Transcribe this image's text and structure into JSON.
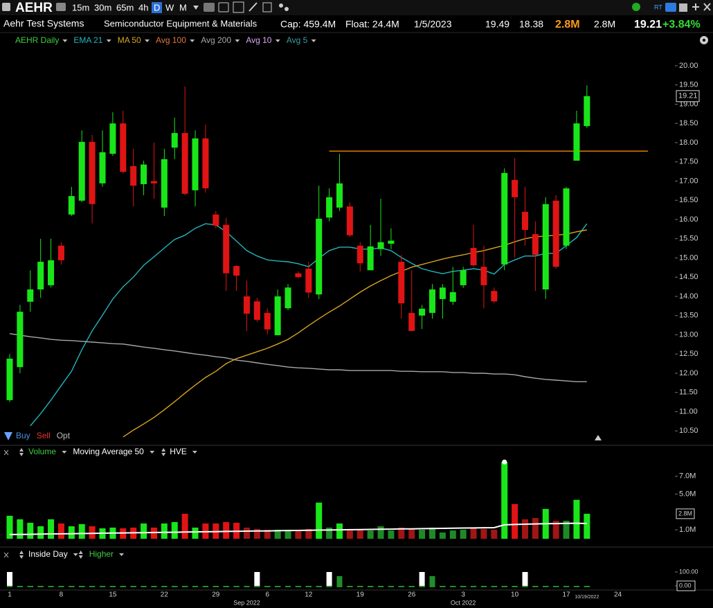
{
  "toolbar": {
    "symbol": "AEHR",
    "timeframes": [
      "15m",
      "30m",
      "65m",
      "4h",
      "D",
      "W",
      "M"
    ],
    "active_timeframe": 4,
    "rt": "RT"
  },
  "header": {
    "name": "Aehr Test Systems",
    "industry": "Semiconductor Equipment & Materials",
    "cap": "Cap: 459.4M",
    "float": "Float: 24.4M",
    "date": "1/5/2023",
    "high": "19.49",
    "low": "18.38",
    "volume": "2.8M",
    "avg_volume": "2.8M",
    "last": "19.21",
    "change": "+3.84%"
  },
  "trade_buttons": [
    "Buy",
    "Sell",
    "Opt"
  ],
  "chart_data": [
    {
      "type": "candlestick",
      "title": "AEHR Daily",
      "title_color": "#3fcf3f",
      "up_color": "#19e619",
      "down_color": "#e01414",
      "categories": [
        "1",
        null,
        null,
        null,
        null,
        "8",
        null,
        null,
        null,
        null,
        "15",
        null,
        null,
        null,
        null,
        "22",
        null,
        null,
        null,
        null,
        "29",
        null,
        null,
        null,
        null,
        "6",
        null,
        null,
        null,
        "12",
        null,
        null,
        null,
        null,
        "19",
        null,
        null,
        null,
        null,
        "26",
        null,
        null,
        null,
        null,
        "3",
        null,
        null,
        null,
        null,
        "10",
        null,
        null,
        null,
        null,
        "17",
        null,
        null,
        null,
        null,
        "24"
      ],
      "month_labels": [
        {
          "index": 23,
          "label": "Sep 2022"
        },
        {
          "index": 44,
          "label": "Oct 2022"
        }
      ],
      "current_date": {
        "index": 56,
        "label": "10/19/2022"
      },
      "open": [
        11.3,
        12.16,
        13.86,
        14.18,
        14.29,
        15.32,
        16.13,
        16.49,
        18.02,
        16.94,
        17.71,
        18.5,
        17.39,
        16.92,
        17.0,
        16.31,
        17.87,
        18.25,
        16.76,
        18.11,
        16.13,
        15.86,
        14.79,
        14.0,
        13.87,
        13.57,
        12.99,
        13.69,
        14.6,
        14.72,
        14.05,
        16.05,
        16.31,
        16.34,
        15.32,
        14.68,
        15.23,
        15.37,
        14.9,
        13.57,
        13.5,
        13.57,
        13.93,
        13.86,
        14.29,
        15.26,
        14.77,
        14.14,
        14.83,
        17.03,
        16.2,
        15.62,
        14.18,
        16.49,
        15.32,
        17.53,
        18.43,
        null,
        null,
        null
      ],
      "high": [
        12.5,
        13.78,
        14.68,
        15.5,
        15.5,
        15.41,
        16.85,
        18.32,
        18.2,
        18.32,
        18.79,
        18.83,
        17.84,
        17.53,
        18.0,
        17.84,
        18.65,
        19.46,
        18.32,
        18.47,
        16.22,
        16.04,
        14.81,
        14.41,
        13.96,
        13.69,
        14.18,
        14.32,
        14.65,
        14.9,
        16.88,
        16.81,
        17.71,
        16.45,
        15.41,
        15.86,
        16.54,
        15.77,
        15.08,
        14.68,
        13.78,
        14.32,
        14.32,
        14.77,
        14.77,
        15.86,
        15.32,
        14.23,
        17.33,
        17.6,
        16.85,
        15.95,
        16.58,
        16.63,
        16.85,
        18.83,
        19.49,
        null,
        null,
        null
      ],
      "low": [
        11.25,
        12.0,
        13.6,
        13.96,
        14.23,
        14.83,
        16.09,
        16.45,
        15.9,
        16.85,
        17.66,
        17.2,
        16.34,
        16.63,
        16.54,
        16.09,
        17.57,
        16.63,
        16.34,
        16.7,
        15.77,
        14.14,
        14.14,
        13.1,
        13.33,
        13.01,
        12.99,
        13.64,
        14.47,
        13.96,
        13.93,
        15.95,
        16.22,
        15.55,
        14.65,
        14.68,
        15.05,
        15.23,
        13.42,
        13.1,
        13.15,
        13.42,
        13.42,
        13.78,
        14.22,
        14.77,
        13.69,
        13.82,
        14.68,
        15.01,
        15.32,
        14.14,
        13.93,
        14.72,
        15.23,
        17.53,
        18.38,
        null,
        null,
        null
      ],
      "close": [
        12.38,
        13.6,
        14.18,
        14.9,
        14.94,
        14.94,
        16.61,
        18.02,
        16.4,
        17.75,
        18.5,
        17.24,
        16.88,
        17.43,
        16.94,
        17.57,
        18.25,
        16.67,
        18.11,
        16.81,
        15.84,
        14.6,
        14.54,
        13.55,
        13.39,
        13.14,
        14.0,
        14.23,
        14.5,
        14.1,
        16.02,
        16.58,
        16.94,
        15.59,
        14.86,
        15.3,
        15.41,
        15.45,
        13.82,
        13.1,
        13.68,
        14.18,
        14.23,
        14.11,
        14.68,
        14.81,
        14.29,
        13.87,
        17.21,
        16.58,
        15.73,
        15.08,
        16.4,
        14.77,
        16.81,
        18.5,
        19.21,
        null,
        null,
        null
      ],
      "studies": [
        {
          "name": "EMA 21",
          "color": "#22b5bd",
          "values": [
            null,
            null,
            10.63,
            10.95,
            11.3,
            11.68,
            12.05,
            12.61,
            13.1,
            13.51,
            13.93,
            14.25,
            14.5,
            14.81,
            15.03,
            15.26,
            15.48,
            15.59,
            15.77,
            15.89,
            15.86,
            15.68,
            15.44,
            15.19,
            15.05,
            14.95,
            14.92,
            14.9,
            14.85,
            14.77,
            14.99,
            15.19,
            15.28,
            15.28,
            15.23,
            15.23,
            15.26,
            15.19,
            15.01,
            14.86,
            14.72,
            14.65,
            14.59,
            14.65,
            14.68,
            14.72,
            14.68,
            14.58,
            14.83,
            14.95,
            15.05,
            15.05,
            15.12,
            15.12,
            15.32,
            15.53,
            15.89,
            null,
            null,
            null
          ]
        },
        {
          "name": "MA 50",
          "color": "#d9a521",
          "values": [
            null,
            null,
            null,
            null,
            null,
            null,
            null,
            null,
            null,
            null,
            null,
            10.34,
            10.52,
            10.68,
            10.85,
            11.05,
            11.26,
            11.48,
            11.69,
            11.89,
            12.05,
            12.25,
            12.38,
            12.47,
            12.56,
            12.65,
            12.76,
            12.88,
            13.05,
            13.24,
            13.42,
            13.59,
            13.75,
            13.93,
            14.11,
            14.27,
            14.41,
            14.54,
            14.65,
            14.76,
            14.83,
            14.9,
            14.97,
            15.03,
            15.08,
            15.14,
            15.19,
            15.26,
            15.33,
            15.42,
            15.5,
            15.55,
            15.57,
            15.59,
            15.62,
            15.68,
            15.73,
            null,
            null,
            null
          ]
        },
        {
          "name": "Avg 100",
          "color": "#e0783a"
        },
        {
          "name": "Avg 200",
          "color": "#a8a8a8",
          "values": [
            13.03,
            12.99,
            12.95,
            12.92,
            12.88,
            12.86,
            12.85,
            12.83,
            12.81,
            12.79,
            12.77,
            12.76,
            12.72,
            12.68,
            12.65,
            12.61,
            12.58,
            12.54,
            12.5,
            12.47,
            12.43,
            12.4,
            12.34,
            12.31,
            12.27,
            12.23,
            12.2,
            12.16,
            12.14,
            12.13,
            12.11,
            12.09,
            12.09,
            12.07,
            12.07,
            12.07,
            12.07,
            12.07,
            12.05,
            12.05,
            12.04,
            12.04,
            12.04,
            12.02,
            12.02,
            12.0,
            12.0,
            11.98,
            11.98,
            11.96,
            11.91,
            11.87,
            11.84,
            11.82,
            11.8,
            11.78,
            11.78,
            null,
            null,
            null
          ]
        },
        {
          "name": "Avg 10",
          "color": "#d8a8f0"
        },
        {
          "name": "Avg 5",
          "color": "#3a9ea0"
        }
      ],
      "level_line": {
        "value": 17.78,
        "start_index": 31,
        "color": "#e07b00"
      },
      "ylim": [
        10.18,
        20.45
      ],
      "yticks": [
        {
          "value": 10.5,
          "label": "10.50"
        },
        {
          "value": 11,
          "label": "11.00"
        },
        {
          "value": 11.5,
          "label": "11.50"
        },
        {
          "value": 12,
          "label": "12.00"
        },
        {
          "value": 12.5,
          "label": "12.50"
        },
        {
          "value": 13,
          "label": "13.00"
        },
        {
          "value": 13.5,
          "label": "13.50"
        },
        {
          "value": 14,
          "label": "14.00"
        },
        {
          "value": 14.5,
          "label": "14.50"
        },
        {
          "value": 15,
          "label": "15.00"
        },
        {
          "value": 15.5,
          "label": "15.50"
        },
        {
          "value": 16,
          "label": "16.00"
        },
        {
          "value": 16.5,
          "label": "16.50"
        },
        {
          "value": 17,
          "label": "17.00"
        },
        {
          "value": 17.5,
          "label": "17.50"
        },
        {
          "value": 18,
          "label": "18.00"
        },
        {
          "value": 18.5,
          "label": "18.50"
        },
        {
          "value": 19,
          "label": "19.00"
        },
        {
          "value": 19.5,
          "label": "19.50"
        },
        {
          "value": 20,
          "label": "20.00"
        }
      ]
    },
    {
      "type": "bar",
      "title": "Volume",
      "title_color": "#3fcf3f",
      "study": "Moving Average 50",
      "study_color": "#ffffff",
      "extra": "HVE",
      "hve_index": 48,
      "values": [
        2570000,
        2180000,
        1790000,
        1400000,
        2180000,
        1710000,
        1400000,
        1640000,
        1400000,
        1170000,
        1250000,
        1170000,
        1250000,
        1710000,
        1250000,
        1710000,
        1870000,
        2800000,
        1250000,
        1710000,
        1710000,
        1870000,
        1790000,
        1250000,
        1090000,
        1010000,
        1010000,
        1010000,
        1010000,
        1090000,
        4050000,
        1250000,
        1710000,
        1010000,
        1010000,
        930000,
        1400000,
        930000,
        1250000,
        1090000,
        1010000,
        1250000,
        700000,
        930000,
        1010000,
        1250000,
        1090000,
        1010000,
        8600000,
        3890000,
        2180000,
        2330000,
        3340000,
        2020000,
        2020000,
        4360000,
        2800000,
        null,
        null,
        null
      ],
      "study_values": [
        470000,
        490000,
        500000,
        520000,
        540000,
        550000,
        570000,
        590000,
        600000,
        620000,
        640000,
        650000,
        670000,
        680000,
        700000,
        720000,
        730000,
        750000,
        770000,
        780000,
        800000,
        820000,
        830000,
        850000,
        870000,
        880000,
        900000,
        920000,
        930000,
        950000,
        970000,
        980000,
        1000000,
        1020000,
        1030000,
        1050000,
        1070000,
        1080000,
        1100000,
        1110000,
        1130000,
        1150000,
        1160000,
        1180000,
        1200000,
        1210000,
        1230000,
        1240000,
        1560000,
        1600000,
        1630000,
        1660000,
        1680000,
        1700000,
        1720000,
        1740000,
        1710000,
        null,
        null,
        null
      ],
      "ylim": [
        0,
        9000000
      ],
      "yticks": [
        {
          "value": 1000000,
          "label": "1.0M"
        },
        {
          "value": 5000000,
          "label": "5.0M"
        },
        {
          "value": 7000000,
          "label": "7.0M"
        }
      ]
    },
    {
      "type": "bar",
      "series": [
        {
          "name": "Inside Day",
          "color": "#ffffff",
          "values": [
            100,
            0,
            0,
            0,
            0,
            0,
            0,
            0,
            0,
            0,
            0,
            0,
            0,
            0,
            0,
            0,
            0,
            0,
            0,
            0,
            0,
            0,
            0,
            0,
            100,
            0,
            0,
            0,
            0,
            0,
            0,
            100,
            0,
            0,
            0,
            0,
            0,
            0,
            0,
            0,
            100,
            0,
            0,
            0,
            0,
            0,
            0,
            0,
            0,
            0,
            100,
            0,
            0,
            0,
            0,
            0,
            0,
            null,
            null,
            null
          ]
        },
        {
          "name": "Higher",
          "color": "#1f8f2a",
          "values": [
            0,
            0,
            0,
            0,
            0,
            0,
            0,
            0,
            0,
            0,
            0,
            0,
            0,
            0,
            0,
            0,
            0,
            0,
            0,
            0,
            0,
            0,
            0,
            0,
            0,
            0,
            0,
            0,
            0,
            0,
            0,
            0,
            70,
            0,
            0,
            0,
            0,
            0,
            0,
            0,
            0,
            70,
            0,
            0,
            0,
            0,
            0,
            0,
            0,
            0,
            0,
            0,
            0,
            0,
            0,
            0,
            0,
            null,
            null,
            null
          ]
        }
      ],
      "ylim": [
        -10,
        125
      ],
      "yticks": [
        {
          "value": 0,
          "label": "0.00"
        },
        {
          "value": 100,
          "label": "100.00"
        }
      ]
    }
  ]
}
